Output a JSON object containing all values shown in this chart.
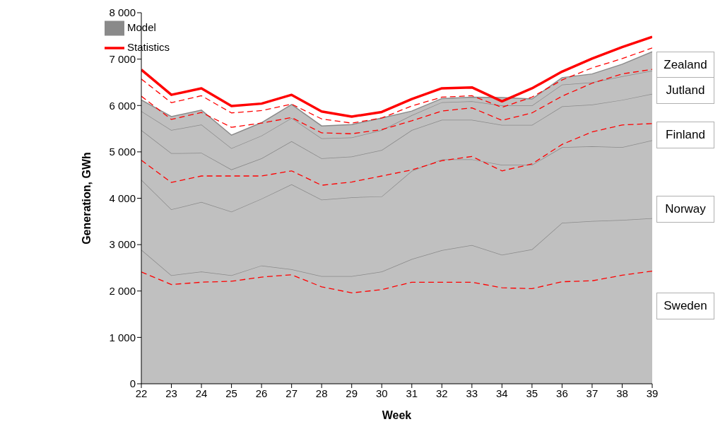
{
  "chart_data": {
    "type": "area",
    "xlabel": "Week",
    "ylabel": "Generation, GWh",
    "x": [
      22,
      23,
      24,
      25,
      26,
      27,
      28,
      29,
      30,
      31,
      32,
      33,
      34,
      35,
      36,
      37,
      38,
      39
    ],
    "xlim": [
      22,
      39
    ],
    "xticks": [
      22,
      23,
      24,
      25,
      26,
      27,
      28,
      29,
      30,
      31,
      32,
      33,
      34,
      35,
      36,
      37,
      38,
      39
    ],
    "ylim": [
      0,
      8000
    ],
    "yticks": [
      0,
      {
        "value": 1000,
        "label": "1 000"
      },
      {
        "value": 2000,
        "label": "2 000"
      },
      {
        "value": 3000,
        "label": "3 000"
      },
      {
        "value": 4000,
        "label": "4 000"
      },
      {
        "value": 5000,
        "label": "5 000"
      },
      {
        "value": 6000,
        "label": "6 000"
      },
      {
        "value": 7000,
        "label": "7 000"
      },
      {
        "value": 8000,
        "label": "8 000"
      }
    ],
    "grid": false,
    "legend": "top left",
    "stacked": true,
    "series": [
      {
        "type": "area",
        "color": "#c0c0c0",
        "values": [
          2890,
          2340,
          2420,
          2340,
          2550,
          2470,
          2320,
          2320,
          2420,
          2690,
          2880,
          2990,
          2780,
          2900,
          3470,
          3510,
          3530,
          3570
        ]
      },
      {
        "type": "area",
        "color": "#c0c0c0",
        "values": [
          1510,
          1420,
          1500,
          1370,
          1440,
          1830,
          1650,
          1700,
          1620,
          1900,
          1960,
          1850,
          1940,
          1820,
          1630,
          1610,
          1570,
          1680
        ]
      },
      {
        "type": "area",
        "color": "#c0c0c0",
        "values": [
          1070,
          1210,
          1060,
          910,
          870,
          930,
          890,
          880,
          1000,
          880,
          850,
          850,
          860,
          860,
          880,
          900,
          1020,
          1000
        ]
      },
      {
        "type": "area",
        "color": "#c0c0c0",
        "values": [
          410,
          500,
          610,
          460,
          490,
          500,
          430,
          410,
          430,
          320,
          380,
          400,
          420,
          420,
          470,
          480,
          510,
          500
        ]
      },
      {
        "type": "area",
        "name": "Model",
        "color": "#c0c0c0",
        "values": [
          240,
          290,
          310,
          280,
          280,
          290,
          270,
          280,
          260,
          90,
          80,
          90,
          170,
          140,
          150,
          180,
          260,
          410
        ]
      },
      {
        "type": "line",
        "name": "Statistics",
        "color": "#ff0000",
        "line_style": "solid",
        "values": [
          6770,
          6230,
          6370,
          5990,
          6040,
          6230,
          5870,
          5760,
          5860,
          6140,
          6370,
          6390,
          6090,
          6370,
          6730,
          7010,
          7260,
          7480
        ]
      },
      {
        "type": "line",
        "color": "#ff0000",
        "line_style": "dashed",
        "values": [
          6570,
          6060,
          6210,
          5840,
          5890,
          6030,
          5710,
          5620,
          5730,
          5990,
          6180,
          6210,
          5960,
          6180,
          6550,
          6810,
          7010,
          7240
        ]
      },
      {
        "type": "line",
        "color": "#ff0000",
        "line_style": "dashed",
        "values": [
          6200,
          5700,
          5850,
          5530,
          5620,
          5740,
          5410,
          5390,
          5480,
          5670,
          5880,
          5950,
          5680,
          5840,
          6200,
          6480,
          6680,
          6780
        ]
      },
      {
        "type": "line",
        "color": "#ff0000",
        "line_style": "dashed",
        "values": [
          4820,
          4340,
          4480,
          4480,
          4480,
          4590,
          4280,
          4350,
          4480,
          4610,
          4810,
          4900,
          4590,
          4740,
          5160,
          5430,
          5580,
          5610
        ]
      },
      {
        "type": "line",
        "color": "#ff0000",
        "line_style": "dashed",
        "values": [
          2410,
          2140,
          2190,
          2210,
          2300,
          2350,
          2090,
          1960,
          2030,
          2190,
          2190,
          2190,
          2070,
          2050,
          2200,
          2220,
          2340,
          2430
        ]
      }
    ],
    "annotations": [
      "Zealand",
      "Jutland",
      "Finland",
      "Norway",
      "Sweden"
    ]
  }
}
